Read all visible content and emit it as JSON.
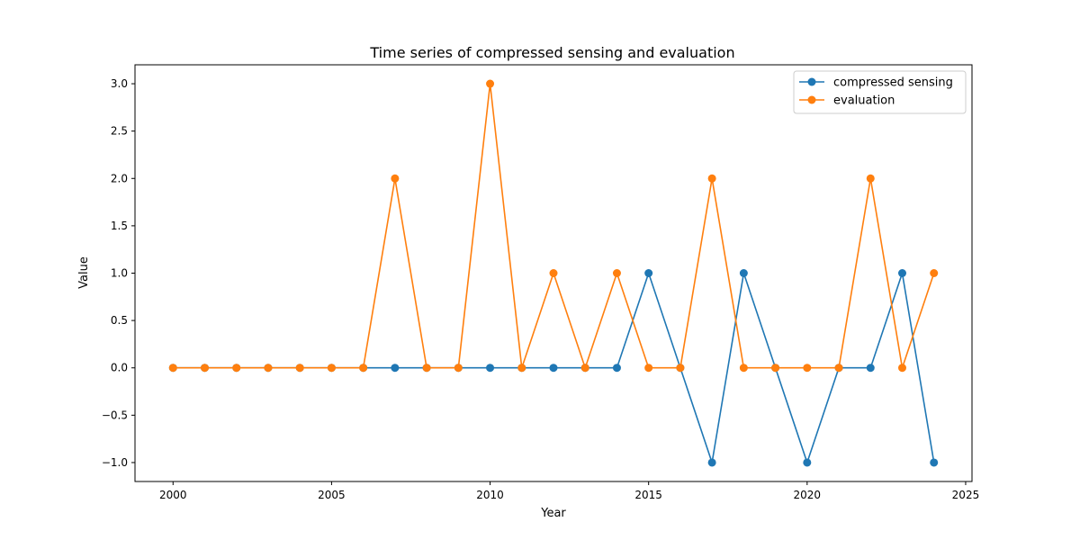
{
  "chart_data": {
    "type": "line",
    "title": "Time series of compressed sensing and evaluation",
    "xlabel": "Year",
    "ylabel": "Value",
    "x": [
      2000,
      2001,
      2002,
      2003,
      2004,
      2005,
      2006,
      2007,
      2008,
      2009,
      2010,
      2011,
      2012,
      2013,
      2014,
      2015,
      2016,
      2017,
      2018,
      2019,
      2020,
      2021,
      2022,
      2023,
      2024
    ],
    "series": [
      {
        "name": "compressed sensing",
        "color": "#1f77b4",
        "values": [
          0,
          0,
          0,
          0,
          0,
          0,
          0,
          0,
          0,
          0,
          0,
          0,
          0,
          0,
          0,
          1,
          0,
          -1,
          1,
          0,
          -1,
          0,
          0,
          1,
          -1
        ]
      },
      {
        "name": "evaluation",
        "color": "#ff7f0e",
        "values": [
          0,
          0,
          0,
          0,
          0,
          0,
          0,
          2,
          0,
          0,
          3,
          0,
          1,
          0,
          1,
          0,
          0,
          2,
          0,
          0,
          0,
          0,
          2,
          0,
          1
        ]
      }
    ],
    "xlim": [
      1998.8,
      2025.2
    ],
    "ylim": [
      -1.2,
      3.2
    ],
    "xticks": [
      "2000",
      "2005",
      "2010",
      "2015",
      "2020",
      "2025"
    ],
    "yticks": [
      "-1.0",
      "-0.5",
      "0.0",
      "0.5",
      "1.0",
      "1.5",
      "2.0",
      "2.5",
      "3.0"
    ],
    "grid": false,
    "legend_position": "top-right"
  }
}
